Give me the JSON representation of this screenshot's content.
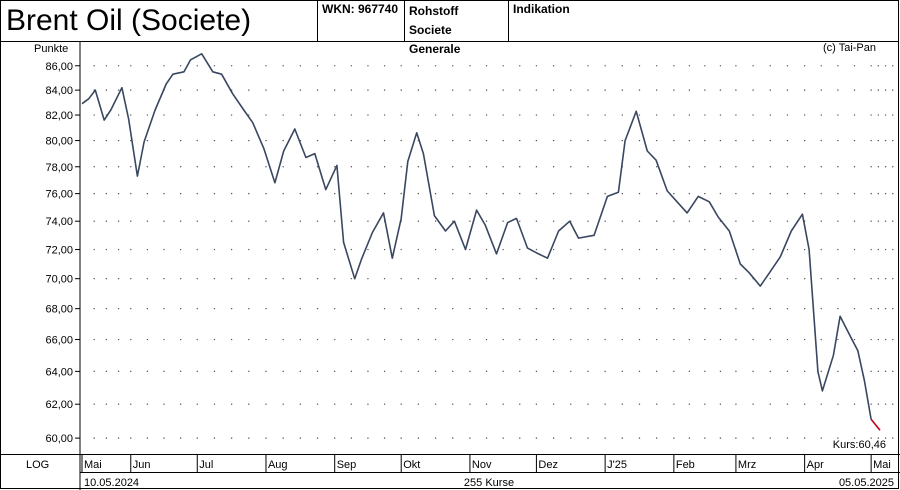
{
  "header": {
    "title": "Brent Oil  (Societe)",
    "wkn": "WKN: 967740",
    "type": "Rohstoff",
    "issuer": "Societe Generale",
    "quote_type": "Indikation"
  },
  "labels": {
    "unit": "Punkte",
    "copyright": "(c) Tai-Pan",
    "kurs": "Kurs:60,46",
    "scale": "LOG",
    "start_date": "10.05.2024",
    "end_date": "05.05.2025",
    "count": "255 Kurse"
  },
  "colors": {
    "line": "#3a4760",
    "last_segment": "#c0001a",
    "grid_dot": "#555555"
  },
  "chart_data": {
    "type": "line",
    "ylabel": "Punkte",
    "yscale": "log",
    "ylim": [
      59.2,
      88.0
    ],
    "yticks": [
      60,
      62,
      64,
      66,
      68,
      70,
      72,
      74,
      76,
      78,
      80,
      82,
      84,
      86
    ],
    "ytick_labels": [
      "60,00",
      "62,00",
      "64,00",
      "66,00",
      "68,00",
      "70,00",
      "72,00",
      "74,00",
      "76,00",
      "78,00",
      "80,00",
      "82,00",
      "84,00",
      "86,00"
    ],
    "xlim": [
      "2024-05-10",
      "2025-05-05"
    ],
    "month_ticks": [
      {
        "label": "Mai",
        "date": "2024-05-01"
      },
      {
        "label": "Jun",
        "date": "2024-06-01"
      },
      {
        "label": "Jul",
        "date": "2024-07-01"
      },
      {
        "label": "Aug",
        "date": "2024-08-01"
      },
      {
        "label": "Sep",
        "date": "2024-09-01"
      },
      {
        "label": "Okt",
        "date": "2024-10-01"
      },
      {
        "label": "Nov",
        "date": "2024-11-01"
      },
      {
        "label": "Dez",
        "date": "2024-12-01"
      },
      {
        "label": "J'25",
        "date": "2025-01-01"
      },
      {
        "label": "Feb",
        "date": "2025-02-01"
      },
      {
        "label": "Mrz",
        "date": "2025-03-01"
      },
      {
        "label": "Apr",
        "date": "2025-04-01"
      },
      {
        "label": "Mai",
        "date": "2025-05-01"
      }
    ],
    "grid": true,
    "series": [
      {
        "x": [
          "2024-05-10",
          "2024-05-13",
          "2024-05-16",
          "2024-05-20",
          "2024-05-23",
          "2024-05-28",
          "2024-05-31",
          "2024-06-04",
          "2024-06-07",
          "2024-06-12",
          "2024-06-17",
          "2024-06-20",
          "2024-06-25",
          "2024-06-28",
          "2024-07-03",
          "2024-07-08",
          "2024-07-12",
          "2024-07-17",
          "2024-07-22",
          "2024-07-26",
          "2024-07-31",
          "2024-08-05",
          "2024-08-09",
          "2024-08-14",
          "2024-08-19",
          "2024-08-23",
          "2024-08-28",
          "2024-09-02",
          "2024-09-05",
          "2024-09-10",
          "2024-09-13",
          "2024-09-18",
          "2024-09-23",
          "2024-09-27",
          "2024-10-01",
          "2024-10-04",
          "2024-10-08",
          "2024-10-11",
          "2024-10-16",
          "2024-10-21",
          "2024-10-25",
          "2024-10-30",
          "2024-11-04",
          "2024-11-08",
          "2024-11-13",
          "2024-11-18",
          "2024-11-22",
          "2024-11-27",
          "2024-12-02",
          "2024-12-06",
          "2024-12-11",
          "2024-12-16",
          "2024-12-20",
          "2024-12-27",
          "2025-01-02",
          "2025-01-07",
          "2025-01-10",
          "2025-01-15",
          "2025-01-20",
          "2025-01-24",
          "2025-01-29",
          "2025-02-03",
          "2025-02-07",
          "2025-02-12",
          "2025-02-17",
          "2025-02-21",
          "2025-02-26",
          "2025-03-03",
          "2025-03-07",
          "2025-03-12",
          "2025-03-17",
          "2025-03-21",
          "2025-03-26",
          "2025-03-31",
          "2025-04-03",
          "2025-04-07",
          "2025-04-09",
          "2025-04-14",
          "2025-04-17",
          "2025-04-22",
          "2025-04-25",
          "2025-04-28",
          "2025-05-01",
          "2025-05-05"
        ],
        "y": [
          82.9,
          83.3,
          84.0,
          81.6,
          82.4,
          84.2,
          81.7,
          77.3,
          79.9,
          82.4,
          84.5,
          85.3,
          85.5,
          86.5,
          87.0,
          85.5,
          85.3,
          83.7,
          82.4,
          81.4,
          79.4,
          76.8,
          79.2,
          80.9,
          78.7,
          79.0,
          76.3,
          78.1,
          72.5,
          70.0,
          71.3,
          73.2,
          74.6,
          71.4,
          74.2,
          78.4,
          80.6,
          79.0,
          74.4,
          73.3,
          74.0,
          72.0,
          74.8,
          73.7,
          71.7,
          73.9,
          74.2,
          72.1,
          71.7,
          71.4,
          73.3,
          74.0,
          72.8,
          73.0,
          75.8,
          76.1,
          80.0,
          82.3,
          79.2,
          78.5,
          76.2,
          75.3,
          74.6,
          75.8,
          75.4,
          74.3,
          73.3,
          71.0,
          70.4,
          69.5,
          70.6,
          71.5,
          73.3,
          74.5,
          72.0,
          64.0,
          62.8,
          65.0,
          67.5,
          66.1,
          65.3,
          63.4,
          61.1,
          60.46
        ]
      }
    ]
  }
}
